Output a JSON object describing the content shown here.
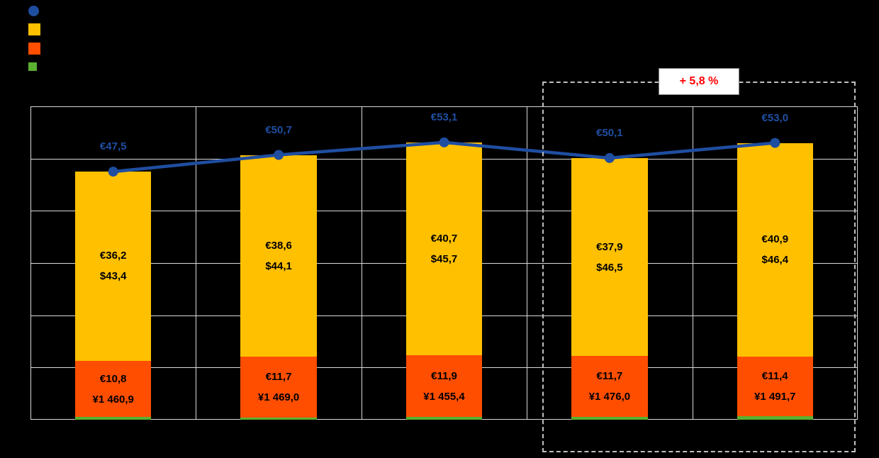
{
  "annotation": {
    "label": "+ 5,8 %",
    "color": "#FF0000"
  },
  "legend": {
    "items": [
      {
        "id": "total-line",
        "shape": "circle",
        "color": "#1F4EA1",
        "size": 15
      },
      {
        "id": "upper-segment",
        "shape": "square",
        "color": "#FFC000",
        "size": 17
      },
      {
        "id": "middle-segment",
        "shape": "square",
        "color": "#FF4E00",
        "size": 17
      },
      {
        "id": "lower-segment",
        "shape": "square",
        "color": "#5BB031",
        "size": 12
      }
    ]
  },
  "chart_data": {
    "type": "bar",
    "subtype": "stacked-column-with-total-line",
    "title": "",
    "xlabel": "",
    "ylabel": "",
    "ylim": [
      0,
      60
    ],
    "grid_step": 10,
    "grid": true,
    "legend_position": "top-left",
    "colors": {
      "line": "#1F4EA1",
      "yellow": "#FFC000",
      "orange": "#FF4E00",
      "green": "#5BB031",
      "grid": "#D9D9D9"
    },
    "categories": [
      "",
      "",
      "",
      "",
      ""
    ],
    "bars": [
      {
        "segments": [
          {
            "series": "green",
            "value": 0.5
          },
          {
            "series": "orange",
            "value": 10.8,
            "lines": [
              "€10,8",
              "¥1 460,9"
            ]
          },
          {
            "series": "yellow",
            "value": 36.2,
            "lines": [
              "€36,2",
              "$43,4"
            ]
          }
        ],
        "total": 47.5,
        "total_label": "€47,5"
      },
      {
        "segments": [
          {
            "series": "green",
            "value": 0.4
          },
          {
            "series": "orange",
            "value": 11.7,
            "lines": [
              "€11,7",
              "¥1 469,0"
            ]
          },
          {
            "series": "yellow",
            "value": 38.6,
            "lines": [
              "€38,6",
              "$44,1"
            ]
          }
        ],
        "total": 50.7,
        "total_label": "€50,7"
      },
      {
        "segments": [
          {
            "series": "green",
            "value": 0.5
          },
          {
            "series": "orange",
            "value": 11.9,
            "lines": [
              "€11,9",
              "¥1 455,4"
            ]
          },
          {
            "series": "yellow",
            "value": 40.7,
            "lines": [
              "€40,7",
              "$45,7"
            ]
          }
        ],
        "total": 53.1,
        "total_label": "€53,1"
      },
      {
        "segments": [
          {
            "series": "green",
            "value": 0.5
          },
          {
            "series": "orange",
            "value": 11.7,
            "lines": [
              "€11,7",
              "¥1 476,0"
            ]
          },
          {
            "series": "yellow",
            "value": 37.9,
            "lines": [
              "€37,9",
              "$46,5"
            ]
          }
        ],
        "total": 50.1,
        "total_label": "€50,1"
      },
      {
        "segments": [
          {
            "series": "green",
            "value": 0.7
          },
          {
            "series": "orange",
            "value": 11.4,
            "lines": [
              "€11,4",
              "¥1 491,7"
            ]
          },
          {
            "series": "yellow",
            "value": 40.9,
            "lines": [
              "€40,9",
              "$46,4"
            ]
          }
        ],
        "total": 53.0,
        "total_label": "€53,0"
      }
    ]
  }
}
